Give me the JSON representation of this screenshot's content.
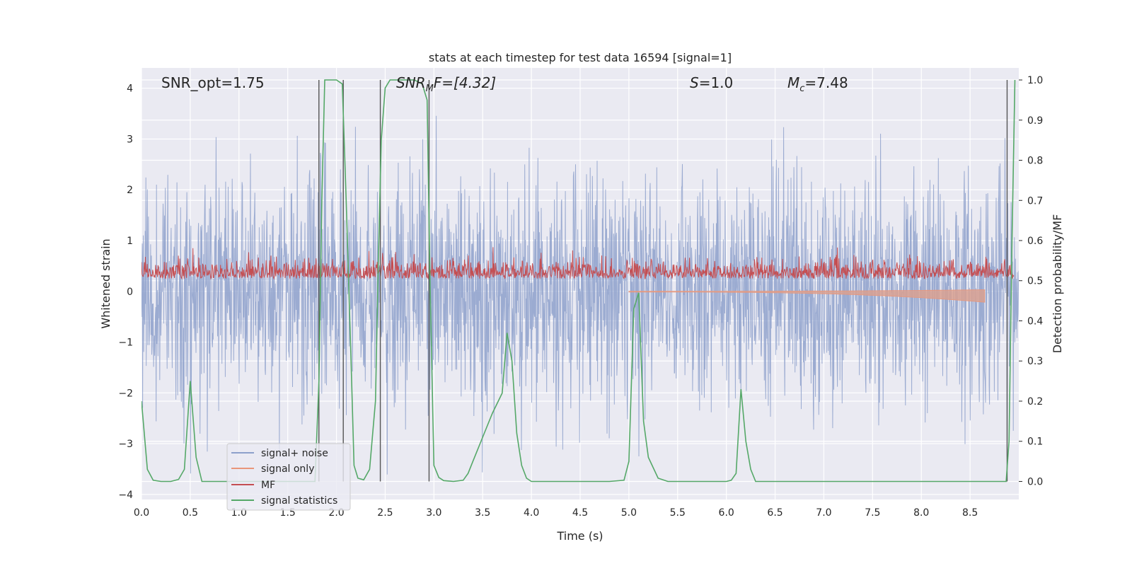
{
  "chart_data": {
    "type": "line",
    "title": "stats at each timestep for test data 16594 [signal=1]",
    "xlabel": "Time (s)",
    "ylabel": "Whitened strain",
    "y2label": "Detection probability/MF",
    "xlim": [
      0.0,
      9.0
    ],
    "ylim": [
      -4.1,
      4.4
    ],
    "y2lim": [
      -0.045,
      1.03
    ],
    "xticks": [
      "0.0",
      "0.5",
      "1.0",
      "1.5",
      "2.0",
      "2.5",
      "3.0",
      "3.5",
      "4.0",
      "4.5",
      "5.0",
      "5.5",
      "6.0",
      "6.5",
      "7.0",
      "7.5",
      "8.0",
      "8.5"
    ],
    "yticks": [
      "4",
      "3",
      "2",
      "1",
      "0",
      "−1",
      "−2",
      "−3",
      "−4"
    ],
    "y2ticks": [
      "1.0",
      "0.9",
      "0.8",
      "0.7",
      "0.6",
      "0.5",
      "0.4",
      "0.3",
      "0.2",
      "0.1",
      "0.0"
    ],
    "annotations": {
      "snr_opt": "SNR_opt=1.75",
      "snr_mf_base": "SNR",
      "snr_mf_sub": "M",
      "snr_mf_rest": "F=[4.32]",
      "s_base": "S",
      "s_rest": "=1.0",
      "mc_base": "M",
      "mc_sub": "c",
      "mc_rest": "=7.48"
    },
    "legend": {
      "position": "lower-left",
      "entries": [
        {
          "label": "signal+ noise",
          "color": "#8DA0CB"
        },
        {
          "label": "signal only",
          "color": "#E9967A"
        },
        {
          "label": "MF",
          "color": "#C44E52"
        },
        {
          "label": "signal statistics",
          "color": "#55A868"
        }
      ]
    },
    "vertical_lines": [
      1.82,
      2.07,
      2.45,
      2.95,
      8.88
    ],
    "series": [
      {
        "name": "signal statistics",
        "axis": "right",
        "color": "#55A868",
        "x": [
          0.0,
          0.06,
          0.12,
          0.2,
          0.3,
          0.38,
          0.44,
          0.5,
          0.56,
          0.62,
          0.7,
          0.9,
          1.2,
          1.5,
          1.78,
          1.82,
          1.85,
          1.88,
          1.92,
          2.0,
          2.06,
          2.1,
          2.15,
          2.18,
          2.22,
          2.28,
          2.34,
          2.4,
          2.43,
          2.46,
          2.5,
          2.55,
          2.6,
          2.7,
          2.8,
          2.88,
          2.93,
          2.96,
          3.0,
          3.05,
          3.1,
          3.2,
          3.3,
          3.35,
          3.4,
          3.5,
          3.6,
          3.7,
          3.75,
          3.8,
          3.85,
          3.9,
          3.95,
          4.0,
          4.2,
          4.5,
          4.8,
          4.95,
          5.0,
          5.05,
          5.1,
          5.15,
          5.2,
          5.3,
          5.4,
          5.5,
          5.7,
          5.9,
          6.0,
          6.05,
          6.1,
          6.15,
          6.2,
          6.25,
          6.3,
          6.5,
          7.0,
          7.5,
          8.0,
          8.5,
          8.8,
          8.87,
          8.9,
          8.93,
          8.96
        ],
        "y": [
          0.2,
          0.03,
          0.003,
          0.0,
          0.0,
          0.005,
          0.03,
          0.25,
          0.06,
          0.0,
          0.0,
          0.0,
          0.0,
          0.0,
          0.0,
          0.25,
          0.7,
          1.0,
          1.0,
          1.0,
          0.99,
          0.7,
          0.3,
          0.04,
          0.008,
          0.004,
          0.03,
          0.2,
          0.55,
          0.85,
          0.98,
          1.0,
          1.0,
          1.0,
          1.0,
          0.99,
          0.95,
          0.5,
          0.04,
          0.01,
          0.002,
          0.0,
          0.003,
          0.02,
          0.05,
          0.11,
          0.17,
          0.22,
          0.37,
          0.3,
          0.12,
          0.04,
          0.008,
          0.0,
          0.0,
          0.0,
          0.0,
          0.003,
          0.05,
          0.43,
          0.47,
          0.15,
          0.06,
          0.008,
          0.0,
          0.0,
          0.0,
          0.0,
          0.0,
          0.003,
          0.02,
          0.23,
          0.1,
          0.03,
          0.0,
          0.0,
          0.0,
          0.0,
          0.0,
          0.0,
          0.0,
          0.0,
          0.1,
          0.6,
          1.0
        ]
      }
    ]
  }
}
